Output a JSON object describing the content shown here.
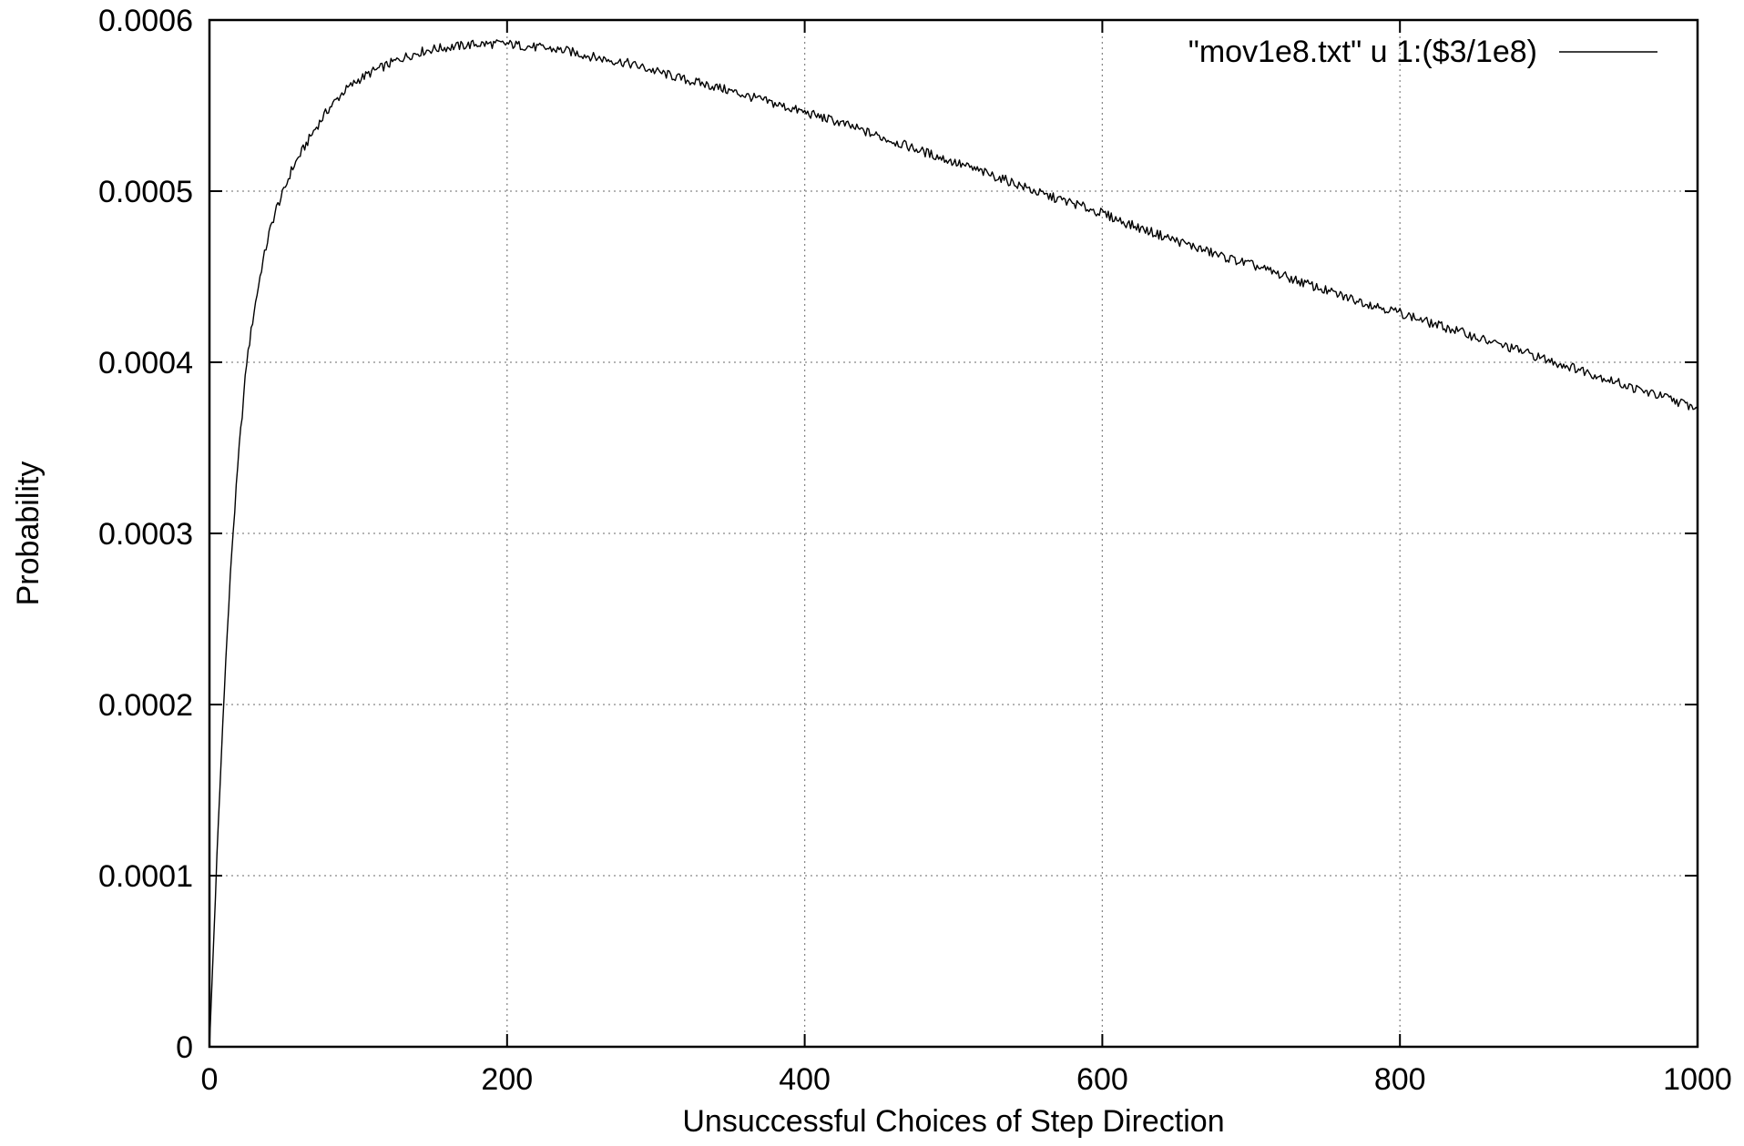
{
  "chart_data": {
    "type": "line",
    "title": "",
    "xlabel": "Unsuccessful Choices of Step Direction",
    "ylabel": "Probability",
    "xlim": [
      0,
      1000
    ],
    "ylim": [
      0,
      0.0006
    ],
    "x_ticks": [
      0,
      200,
      400,
      600,
      800,
      1000
    ],
    "x_tick_labels": [
      "0",
      "200",
      "400",
      "600",
      "800",
      "1000"
    ],
    "y_ticks": [
      0,
      0.0001,
      0.0002,
      0.0003,
      0.0004,
      0.0005,
      0.0006
    ],
    "y_tick_labels": [
      "0",
      "0.0001",
      "0.0002",
      "0.0003",
      "0.0004",
      "0.0005",
      "0.0006"
    ],
    "grid": true,
    "legend_position": "top-right",
    "colors": {
      "line": "#000000",
      "grid": "#888888",
      "frame": "#000000"
    },
    "series": [
      {
        "name": "\"mov1e8.txt\" u 1:($3/1e8)",
        "x": [
          0,
          5,
          10,
          15,
          20,
          25,
          30,
          35,
          40,
          45,
          50,
          55,
          60,
          70,
          80,
          90,
          100,
          110,
          120,
          130,
          140,
          150,
          160,
          170,
          180,
          190,
          200,
          210,
          220,
          230,
          240,
          250,
          260,
          280,
          300,
          320,
          340,
          360,
          380,
          400,
          420,
          440,
          460,
          480,
          500,
          520,
          540,
          560,
          580,
          600,
          620,
          640,
          660,
          680,
          700,
          720,
          740,
          760,
          780,
          800,
          820,
          840,
          860,
          880,
          900,
          920,
          940,
          960,
          980,
          1000
        ],
        "y": [
          0.0,
          0.00011,
          0.00021,
          0.00029,
          0.00035,
          0.0004,
          0.00043,
          0.000455,
          0.000475,
          0.00049,
          0.0005,
          0.000512,
          0.00052,
          0.000535,
          0.000548,
          0.000558,
          0.000565,
          0.00057,
          0.000574,
          0.000578,
          0.000581,
          0.000583,
          0.000584,
          0.000585,
          0.000586,
          0.000586,
          0.000586,
          0.000585,
          0.000584,
          0.000583,
          0.000582,
          0.00058,
          0.000578,
          0.000575,
          0.00057,
          0.000565,
          0.000561,
          0.000556,
          0.000551,
          0.000546,
          0.000541,
          0.000535,
          0.000529,
          0.000523,
          0.000517,
          0.000511,
          0.000505,
          0.000498,
          0.000493,
          0.000487,
          0.00048,
          0.000474,
          0.000468,
          0.000462,
          0.000457,
          0.000451,
          0.000445,
          0.000439,
          0.000434,
          0.000429,
          0.000423,
          0.000418,
          0.000412,
          0.000407,
          0.000401,
          0.000396,
          0.00039,
          0.000384,
          0.000379,
          0.000373
        ]
      }
    ]
  }
}
